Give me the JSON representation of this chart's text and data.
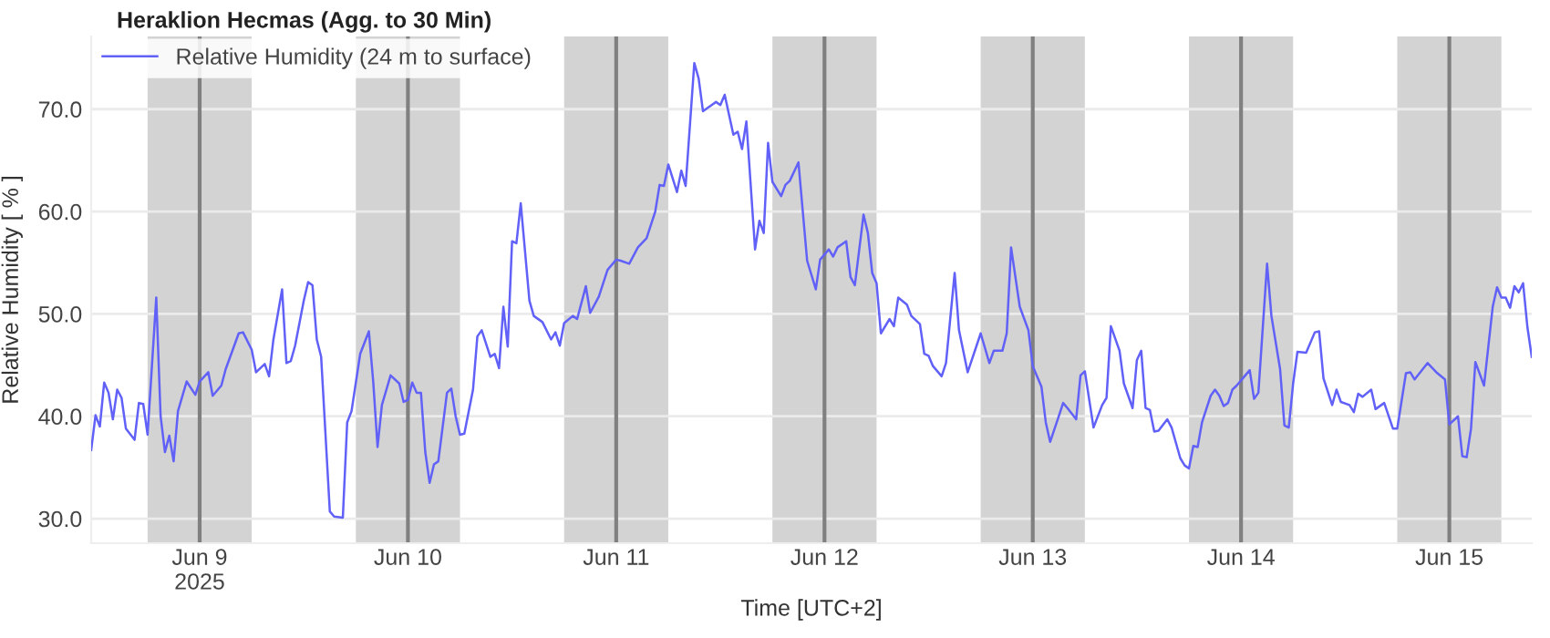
{
  "chart_data": {
    "type": "line",
    "title": "Heraklion Hecmas (Agg. to 30 Min)",
    "xlabel": "Time [UTC+2]",
    "ylabel": "Relative Humidity [ % ]",
    "xlim": [
      "2025-06-08T11:30",
      "2025-06-15T09:30"
    ],
    "xticks": [
      {
        "value": "2025-06-09",
        "label": "Jun 9\n2025"
      },
      {
        "value": "2025-06-10",
        "label": "Jun 10"
      },
      {
        "value": "2025-06-11",
        "label": "Jun 11"
      },
      {
        "value": "2025-06-12",
        "label": "Jun 12"
      },
      {
        "value": "2025-06-13",
        "label": "Jun 13"
      },
      {
        "value": "2025-06-14",
        "label": "Jun 14"
      },
      {
        "value": "2025-06-15",
        "label": "Jun 15"
      }
    ],
    "ylim": [
      27.6,
      77.1
    ],
    "yticks": [
      {
        "value": 30,
        "label": "30.0"
      },
      {
        "value": 40,
        "label": "40.0"
      },
      {
        "value": 50,
        "label": "50.0"
      },
      {
        "value": 60,
        "label": "60.0"
      },
      {
        "value": 70,
        "label": "70.0"
      }
    ],
    "grid": "y",
    "legend": "top left",
    "marker": "none",
    "line_style": "solid",
    "bands": [
      {
        "axis": "x",
        "from": "2025-06-08T18:00",
        "to": "2025-06-09T06:00",
        "color": "#d3d3d3"
      },
      {
        "axis": "x",
        "from": "2025-06-09T18:00",
        "to": "2025-06-10T06:00",
        "color": "#d3d3d3"
      },
      {
        "axis": "x",
        "from": "2025-06-10T18:00",
        "to": "2025-06-11T06:00",
        "color": "#d3d3d3"
      },
      {
        "axis": "x",
        "from": "2025-06-11T18:00",
        "to": "2025-06-12T06:00",
        "color": "#d3d3d3"
      },
      {
        "axis": "x",
        "from": "2025-06-12T18:00",
        "to": "2025-06-13T06:00",
        "color": "#d3d3d3"
      },
      {
        "axis": "x",
        "from": "2025-06-13T18:00",
        "to": "2025-06-14T06:00",
        "color": "#d3d3d3"
      },
      {
        "axis": "x",
        "from": "2025-06-14T18:00",
        "to": "2025-06-15T06:00",
        "color": "#d3d3d3"
      }
    ],
    "ref_lines": [
      {
        "axis": "x",
        "value": "2025-06-09",
        "color": "#808080"
      },
      {
        "axis": "x",
        "value": "2025-06-10",
        "color": "#808080"
      },
      {
        "axis": "x",
        "value": "2025-06-11",
        "color": "#808080"
      },
      {
        "axis": "x",
        "value": "2025-06-12",
        "color": "#808080"
      },
      {
        "axis": "x",
        "value": "2025-06-13",
        "color": "#808080"
      },
      {
        "axis": "x",
        "value": "2025-06-14",
        "color": "#808080"
      },
      {
        "axis": "x",
        "value": "2025-06-15",
        "color": "#808080"
      }
    ],
    "series": [
      {
        "name": "Relative Humidity (24 m to surface)",
        "color": "#6161f8",
        "x": [
          "2025-06-08T11:30",
          "2025-06-08T12:00",
          "2025-06-08T12:30",
          "2025-06-08T13:00",
          "2025-06-08T13:30",
          "2025-06-08T14:00",
          "2025-06-08T14:30",
          "2025-06-08T15:00",
          "2025-06-08T15:30",
          "2025-06-08T16:30",
          "2025-06-08T17:00",
          "2025-06-08T17:30",
          "2025-06-08T18:00",
          "2025-06-08T19:00",
          "2025-06-08T19:30",
          "2025-06-08T20:00",
          "2025-06-08T20:30",
          "2025-06-08T21:00",
          "2025-06-08T21:30",
          "2025-06-08T22:30",
          "2025-06-08T23:30",
          "2025-06-09T00:00",
          "2025-06-09T01:00",
          "2025-06-09T01:30",
          "2025-06-09T02:30",
          "2025-06-09T03:00",
          "2025-06-09T04:30",
          "2025-06-09T05:00",
          "2025-06-09T06:00",
          "2025-06-09T06:30",
          "2025-06-09T07:30",
          "2025-06-09T08:00",
          "2025-06-09T08:30",
          "2025-06-09T09:30",
          "2025-06-09T10:00",
          "2025-06-09T10:30",
          "2025-06-09T11:00",
          "2025-06-09T12:00",
          "2025-06-09T12:30",
          "2025-06-09T13:00",
          "2025-06-09T13:30",
          "2025-06-09T14:00",
          "2025-06-09T15:00",
          "2025-06-09T15:30",
          "2025-06-09T16:30",
          "2025-06-09T17:00",
          "2025-06-09T17:30",
          "2025-06-09T18:30",
          "2025-06-09T19:30",
          "2025-06-09T20:00",
          "2025-06-09T20:30",
          "2025-06-09T21:00",
          "2025-06-09T22:00",
          "2025-06-09T23:00",
          "2025-06-09T23:30",
          "2025-06-10T00:00",
          "2025-06-10T00:30",
          "2025-06-10T01:00",
          "2025-06-10T01:30",
          "2025-06-10T02:00",
          "2025-06-10T02:30",
          "2025-06-10T03:00",
          "2025-06-10T03:30",
          "2025-06-10T04:30",
          "2025-06-10T05:00",
          "2025-06-10T05:30",
          "2025-06-10T06:00",
          "2025-06-10T06:30",
          "2025-06-10T07:30",
          "2025-06-10T08:00",
          "2025-06-10T08:30",
          "2025-06-10T09:30",
          "2025-06-10T10:00",
          "2025-06-10T10:30",
          "2025-06-10T11:00",
          "2025-06-10T11:30",
          "2025-06-10T12:00",
          "2025-06-10T12:30",
          "2025-06-10T13:00",
          "2025-06-10T14:00",
          "2025-06-10T14:30",
          "2025-06-10T15:30",
          "2025-06-10T16:30",
          "2025-06-10T17:00",
          "2025-06-10T17:30",
          "2025-06-10T18:00",
          "2025-06-10T19:00",
          "2025-06-10T19:30",
          "2025-06-10T20:30",
          "2025-06-10T21:00",
          "2025-06-10T22:00",
          "2025-06-10T23:00",
          "2025-06-11T00:00",
          "2025-06-11T00:30",
          "2025-06-11T01:30",
          "2025-06-11T02:30",
          "2025-06-11T03:30",
          "2025-06-11T04:30",
          "2025-06-11T05:00",
          "2025-06-11T05:30",
          "2025-06-11T06:00",
          "2025-06-11T07:00",
          "2025-06-11T07:30",
          "2025-06-11T08:00",
          "2025-06-11T09:00",
          "2025-06-11T09:30",
          "2025-06-11T10:00",
          "2025-06-11T11:00",
          "2025-06-11T11:30",
          "2025-06-11T12:00",
          "2025-06-11T12:30",
          "2025-06-11T13:30",
          "2025-06-11T14:00",
          "2025-06-11T14:30",
          "2025-06-11T15:00",
          "2025-06-11T16:00",
          "2025-06-11T16:30",
          "2025-06-11T17:00",
          "2025-06-11T17:30",
          "2025-06-11T18:00",
          "2025-06-11T19:00",
          "2025-06-11T19:30",
          "2025-06-11T20:00",
          "2025-06-11T21:00",
          "2025-06-11T22:00",
          "2025-06-11T23:00",
          "2025-06-11T23:30",
          "2025-06-12T00:30",
          "2025-06-12T01:00",
          "2025-06-12T01:30",
          "2025-06-12T02:30",
          "2025-06-12T03:00",
          "2025-06-12T03:30",
          "2025-06-12T04:30",
          "2025-06-12T05:00",
          "2025-06-12T05:30",
          "2025-06-12T06:00",
          "2025-06-12T06:30",
          "2025-06-12T07:30",
          "2025-06-12T08:00",
          "2025-06-12T08:30",
          "2025-06-12T09:30",
          "2025-06-12T10:00",
          "2025-06-12T11:00",
          "2025-06-12T11:30",
          "2025-06-12T12:00",
          "2025-06-12T12:30",
          "2025-06-12T13:30",
          "2025-06-12T14:00",
          "2025-06-12T15:00",
          "2025-06-12T15:30",
          "2025-06-12T16:30",
          "2025-06-12T18:00",
          "2025-06-12T19:00",
          "2025-06-12T19:30",
          "2025-06-12T20:30",
          "2025-06-12T21:00",
          "2025-06-12T21:30",
          "2025-06-12T22:30",
          "2025-06-12T23:30",
          "2025-06-13T00:00",
          "2025-06-13T01:00",
          "2025-06-13T01:30",
          "2025-06-13T02:00",
          "2025-06-13T03:00",
          "2025-06-13T03:30",
          "2025-06-13T04:00",
          "2025-06-13T05:00",
          "2025-06-13T05:30",
          "2025-06-13T06:00",
          "2025-06-13T07:00",
          "2025-06-13T08:00",
          "2025-06-13T08:30",
          "2025-06-13T09:00",
          "2025-06-13T10:00",
          "2025-06-13T10:30",
          "2025-06-13T11:30",
          "2025-06-13T12:00",
          "2025-06-13T12:30",
          "2025-06-13T13:00",
          "2025-06-13T13:30",
          "2025-06-13T14:00",
          "2025-06-13T14:30",
          "2025-06-13T15:30",
          "2025-06-13T16:00",
          "2025-06-13T17:00",
          "2025-06-13T17:30",
          "2025-06-13T18:00",
          "2025-06-13T18:30",
          "2025-06-13T19:00",
          "2025-06-13T19:30",
          "2025-06-13T20:30",
          "2025-06-13T21:00",
          "2025-06-13T21:30",
          "2025-06-13T22:00",
          "2025-06-13T22:30",
          "2025-06-13T23:00",
          "2025-06-13T23:30",
          "2025-06-14T00:00",
          "2025-06-14T01:00",
          "2025-06-14T01:30",
          "2025-06-14T02:00",
          "2025-06-14T03:00",
          "2025-06-14T03:30",
          "2025-06-14T04:30",
          "2025-06-14T05:00",
          "2025-06-14T05:30",
          "2025-06-14T06:00",
          "2025-06-14T06:30",
          "2025-06-14T07:30",
          "2025-06-14T08:30",
          "2025-06-14T09:00",
          "2025-06-14T09:30",
          "2025-06-14T10:30",
          "2025-06-14T11:00",
          "2025-06-14T11:30",
          "2025-06-14T12:30",
          "2025-06-14T13:00",
          "2025-06-14T13:30",
          "2025-06-14T14:00",
          "2025-06-14T15:00",
          "2025-06-14T15:30",
          "2025-06-14T16:30",
          "2025-06-14T17:30",
          "2025-06-14T18:00",
          "2025-06-14T19:00",
          "2025-06-14T19:30",
          "2025-06-14T20:00",
          "2025-06-14T21:30",
          "2025-06-14T22:30",
          "2025-06-14T23:30",
          "2025-06-15T00:00",
          "2025-06-15T01:00",
          "2025-06-15T01:30",
          "2025-06-15T02:00",
          "2025-06-15T02:30",
          "2025-06-15T03:00",
          "2025-06-15T04:00",
          "2025-06-15T05:00",
          "2025-06-15T05:30",
          "2025-06-15T06:00",
          "2025-06-15T06:30",
          "2025-06-15T07:00",
          "2025-06-15T07:30",
          "2025-06-15T08:00",
          "2025-06-15T08:30",
          "2025-06-15T09:00",
          "2025-06-15T09:30"
        ],
        "values": [
          36.7,
          40.1,
          39.0,
          43.3,
          42.3,
          39.7,
          42.6,
          41.8,
          38.8,
          37.7,
          41.3,
          41.2,
          38.2,
          51.6,
          40.0,
          36.5,
          38.1,
          35.6,
          40.5,
          43.4,
          42.1,
          43.4,
          44.3,
          42.0,
          43.0,
          44.6,
          48.1,
          48.2,
          46.5,
          44.3,
          45.1,
          43.9,
          47.5,
          52.4,
          45.2,
          45.4,
          46.9,
          51.3,
          53.1,
          52.8,
          47.5,
          45.8,
          30.7,
          30.2,
          30.1,
          39.4,
          40.5,
          46.1,
          48.3,
          43.4,
          37.0,
          41.1,
          44.0,
          43.2,
          41.4,
          41.6,
          43.3,
          42.3,
          42.3,
          36.5,
          33.5,
          35.3,
          35.6,
          42.3,
          42.7,
          40.0,
          38.2,
          38.3,
          42.6,
          47.8,
          48.4,
          45.8,
          46.1,
          44.7,
          50.7,
          46.8,
          57.1,
          56.9,
          60.8,
          51.3,
          49.8,
          49.2,
          47.5,
          48.2,
          46.9,
          49.1,
          49.8,
          49.5,
          52.7,
          50.1,
          51.7,
          54.3,
          55.3,
          55.2,
          54.9,
          56.5,
          57.4,
          60.0,
          62.6,
          62.5,
          64.6,
          61.9,
          64.0,
          62.5,
          74.5,
          73.0,
          69.8,
          70.4,
          70.7,
          70.4,
          71.4,
          67.5,
          67.8,
          66.1,
          68.8,
          56.3,
          59.1,
          57.9,
          66.7,
          62.9,
          61.5,
          62.6,
          63.0,
          64.8,
          55.2,
          52.4,
          55.3,
          56.3,
          55.6,
          56.5,
          57.1,
          53.6,
          52.8,
          59.7,
          57.9,
          54.0,
          53.0,
          48.1,
          49.5,
          48.8,
          51.6,
          50.9,
          49.8,
          49.0,
          46.1,
          45.9,
          44.9,
          43.9,
          45.2,
          54.0,
          48.4,
          44.3,
          48.1,
          45.2,
          46.4,
          46.4,
          48.1,
          56.5,
          50.7,
          48.4,
          44.9,
          42.9,
          39.4,
          37.5,
          40.0,
          41.3,
          40.8,
          39.7,
          44.0,
          44.4,
          38.9,
          41.1,
          41.8,
          48.8,
          46.4,
          43.2,
          40.8,
          45.5,
          46.4,
          40.8,
          40.6,
          38.5,
          38.6,
          39.7,
          38.9,
          35.9,
          35.2,
          34.9,
          37.1,
          37.0,
          39.4,
          42.0,
          42.6,
          42.0,
          41.0,
          41.3,
          42.6,
          43.0,
          43.5,
          44.5,
          41.7,
          42.3,
          54.9,
          49.8,
          44.6,
          39.1,
          38.9,
          43.2,
          46.3,
          46.2,
          48.2,
          48.3,
          43.7,
          41.1,
          42.6,
          41.4,
          41.1,
          40.4,
          42.2,
          41.9,
          42.6,
          40.7,
          41.3,
          38.8,
          38.8,
          44.2,
          44.3,
          43.6,
          45.2,
          44.3,
          43.6,
          39.2,
          40.0,
          36.1,
          36.0,
          38.8,
          45.3,
          43.0,
          50.7,
          52.6,
          51.6,
          51.6,
          50.6,
          52.7,
          52.1,
          53.0,
          48.7,
          45.8
        ]
      }
    ]
  }
}
